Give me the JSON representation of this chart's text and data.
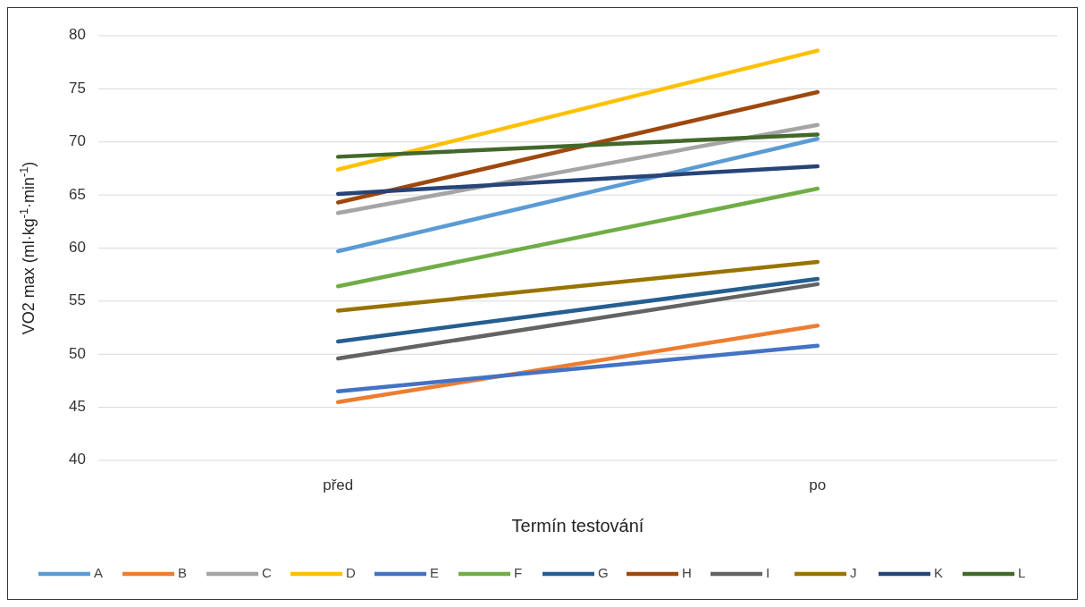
{
  "chart_data": {
    "type": "line",
    "xlabel": "Termín testování",
    "ylabel": "VO2 max (ml·kg$^{-1}$·min$^{-1}$)",
    "categories": [
      "před",
      "po"
    ],
    "ylim": [
      40,
      80
    ],
    "yticks": [
      40,
      45,
      50,
      55,
      60,
      65,
      70,
      75,
      80
    ],
    "grid": "y",
    "legend": "bottom",
    "marker": "none",
    "line_style": "solid",
    "series": [
      {
        "name": "A",
        "color": "#5b9bd5",
        "values": [
          59.7,
          70.3
        ]
      },
      {
        "name": "B",
        "color": "#ed7d31",
        "values": [
          45.5,
          52.7
        ]
      },
      {
        "name": "C",
        "color": "#a5a5a5",
        "values": [
          63.3,
          71.6
        ]
      },
      {
        "name": "D",
        "color": "#ffc000",
        "values": [
          67.4,
          78.6
        ]
      },
      {
        "name": "E",
        "color": "#4472c4",
        "values": [
          46.5,
          50.8
        ]
      },
      {
        "name": "F",
        "color": "#70ad47",
        "values": [
          56.4,
          65.6
        ]
      },
      {
        "name": "G",
        "color": "#255e91",
        "values": [
          51.2,
          57.1
        ]
      },
      {
        "name": "H",
        "color": "#9e480e",
        "values": [
          64.3,
          74.7
        ]
      },
      {
        "name": "I",
        "color": "#636363",
        "values": [
          49.6,
          56.6
        ]
      },
      {
        "name": "J",
        "color": "#997300",
        "values": [
          54.1,
          58.7
        ]
      },
      {
        "name": "K",
        "color": "#264478",
        "values": [
          65.1,
          67.7
        ]
      },
      {
        "name": "L",
        "color": "#43682b",
        "values": [
          68.6,
          70.7
        ]
      }
    ]
  }
}
